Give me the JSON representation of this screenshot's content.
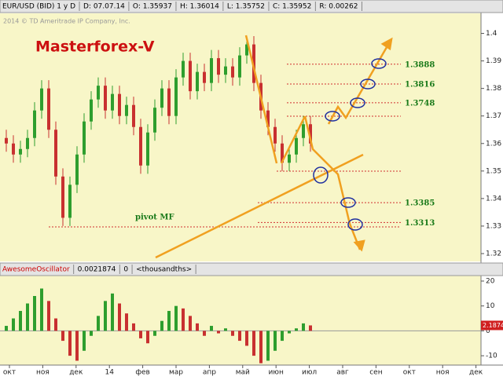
{
  "chart_data": [
    {
      "type": "candlestick",
      "header": [
        "EUR/USD (BID) 1 y D",
        "D: 07.07.14",
        "O: 1.35937",
        "H: 1.36014",
        "L: 1.35752",
        "C: 1.35952",
        "R: 0.00262"
      ],
      "copyright": "2014 © TD Ameritrade IP Company, Inc.",
      "title": "Masterforex-V",
      "up_color": "#2e9e2e",
      "down_color": "#c83030",
      "open": [
        1.362,
        1.36,
        1.356,
        1.358,
        1.362,
        1.372,
        1.38,
        1.365,
        1.348,
        1.333,
        1.345,
        1.356,
        1.368,
        1.376,
        1.381,
        1.372,
        1.378,
        1.37,
        1.374,
        1.366,
        1.352,
        1.364,
        1.373,
        1.38,
        1.37,
        1.384,
        1.39,
        1.379,
        1.386,
        1.382,
        1.391,
        1.385,
        1.388,
        1.384,
        1.392,
        1.396,
        1.382,
        1.372,
        1.366,
        1.36,
        1.353,
        1.356,
        1.362,
        1.367
      ],
      "high": [
        1.365,
        1.363,
        1.361,
        1.365,
        1.375,
        1.383,
        1.383,
        1.368,
        1.351,
        1.348,
        1.359,
        1.371,
        1.379,
        1.384,
        1.384,
        1.381,
        1.381,
        1.377,
        1.377,
        1.369,
        1.367,
        1.376,
        1.383,
        1.383,
        1.387,
        1.393,
        1.393,
        1.389,
        1.389,
        1.394,
        1.394,
        1.391,
        1.391,
        1.395,
        1.399,
        1.399,
        1.385,
        1.375,
        1.369,
        1.363,
        1.359,
        1.365,
        1.37,
        1.37
      ],
      "low": [
        1.357,
        1.353,
        1.353,
        1.355,
        1.359,
        1.369,
        1.362,
        1.345,
        1.33,
        1.33,
        1.342,
        1.353,
        1.365,
        1.373,
        1.369,
        1.369,
        1.367,
        1.367,
        1.363,
        1.349,
        1.349,
        1.361,
        1.37,
        1.367,
        1.367,
        1.381,
        1.376,
        1.376,
        1.379,
        1.379,
        1.382,
        1.382,
        1.381,
        1.381,
        1.389,
        1.379,
        1.369,
        1.363,
        1.357,
        1.35,
        1.35,
        1.353,
        1.359,
        1.357
      ],
      "close": [
        1.36,
        1.356,
        1.358,
        1.362,
        1.372,
        1.38,
        1.365,
        1.348,
        1.333,
        1.345,
        1.356,
        1.368,
        1.376,
        1.381,
        1.372,
        1.378,
        1.37,
        1.374,
        1.366,
        1.352,
        1.364,
        1.373,
        1.38,
        1.37,
        1.384,
        1.39,
        1.379,
        1.386,
        1.382,
        1.391,
        1.385,
        1.388,
        1.384,
        1.392,
        1.396,
        1.382,
        1.372,
        1.366,
        1.36,
        1.353,
        1.356,
        1.362,
        1.367,
        1.36
      ],
      "ylim": [
        1.318,
        1.407
      ],
      "yticks": [
        1.4,
        1.39,
        1.38,
        1.37,
        1.36,
        1.35,
        1.34,
        1.33,
        1.32
      ],
      "levels": [
        1.3888,
        1.3816,
        1.3748,
        1.3385,
        1.3313
      ],
      "pivot": {
        "label": "pivot MF",
        "value": 1.3297
      },
      "months": [
        "окт",
        "ноя",
        "дек",
        "14",
        "фев",
        "мар",
        "апр",
        "май",
        "июн",
        "июл",
        "авг",
        "сен",
        "окт",
        "ноя",
        "дек"
      ]
    },
    {
      "type": "histogram_oscillator",
      "header": [
        "AwesomeOscillator",
        "0.0021874",
        "0",
        "<thousandths>"
      ],
      "values": [
        2,
        5,
        8,
        11,
        14,
        17,
        12,
        5,
        -4,
        -10,
        -12,
        -8,
        -2,
        6,
        12,
        15,
        11,
        7,
        3,
        -3,
        -5,
        -2,
        4,
        8,
        10,
        9,
        6,
        3,
        -2,
        2,
        -1,
        1,
        -2,
        -4,
        -6,
        -10,
        -13,
        -12,
        -8,
        -4,
        -1,
        1,
        3,
        2.1874
      ],
      "last_label": "2.1874",
      "ylim": [
        -13.75,
        22.2
      ],
      "yticks": [
        20,
        10,
        0,
        -10
      ]
    }
  ]
}
